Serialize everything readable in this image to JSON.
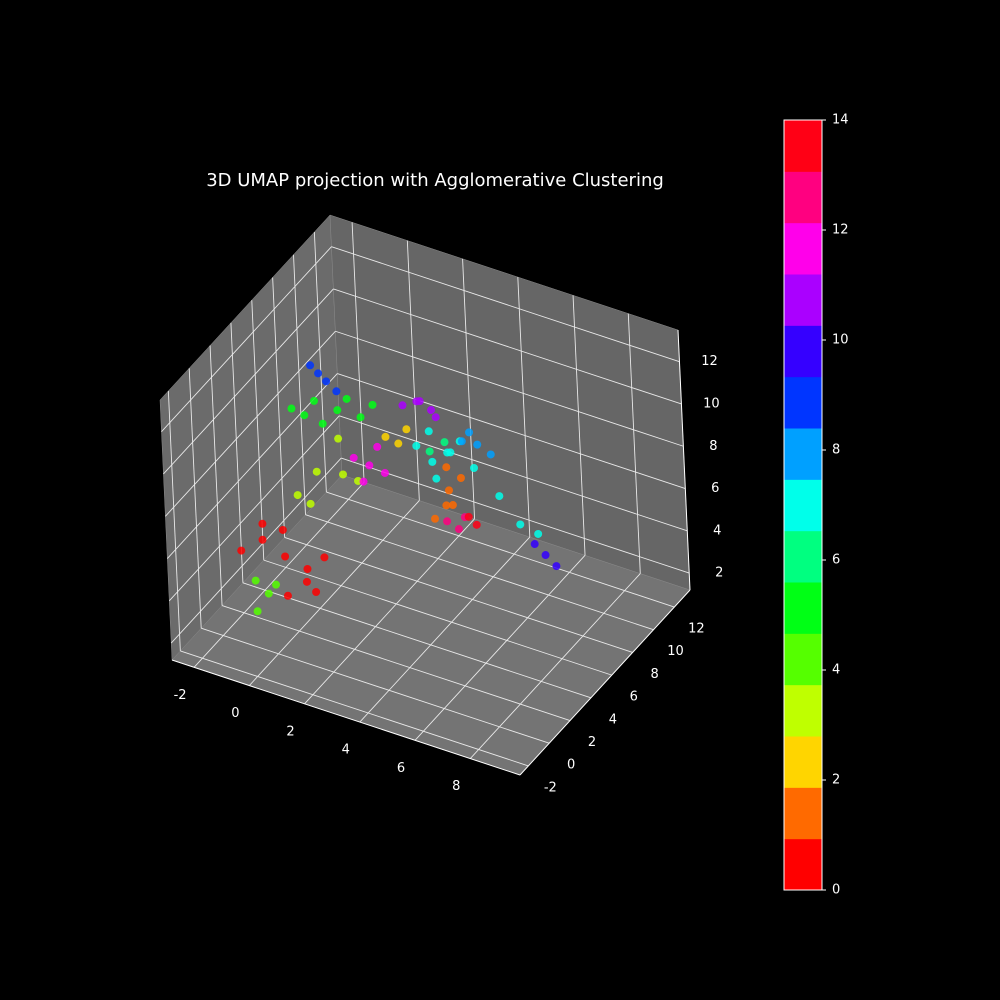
{
  "chart_data": {
    "type": "scatter3d",
    "title": "3D UMAP projection with Agglomerative Clustering",
    "xlim": [
      -2.8,
      9.8
    ],
    "ylim": [
      -2.8,
      13.5
    ],
    "zlim": [
      1.2,
      13.5
    ],
    "xticks": [
      -2,
      0,
      2,
      4,
      6,
      8
    ],
    "yticks": [
      -2,
      0,
      2,
      4,
      6,
      8,
      10,
      12
    ],
    "zticks": [
      2,
      4,
      6,
      8,
      10,
      12
    ],
    "grid": true,
    "colorbar": {
      "lim": [
        0,
        14
      ],
      "ticks": [
        0,
        2,
        4,
        6,
        8,
        10,
        12,
        14
      ]
    },
    "series": [
      {
        "color": "#ff0000",
        "x": [
          -1.8,
          -1.2,
          -0.6,
          0,
          0.6,
          -1.0,
          -0.2,
          0.4,
          -1.5,
          0.2
        ],
        "y": [
          1.5,
          2.0,
          2.5,
          3.0,
          2.2,
          3.4,
          1.6,
          3.6,
          2.8,
          2.4
        ],
        "z": [
          4.5,
          5,
          4.2,
          3.6,
          3.2,
          4.8,
          3.0,
          4.0,
          5.2,
          3.4
        ]
      },
      {
        "color": "#ff6a00",
        "x": [
          2.6,
          3.0,
          3.3,
          2.8,
          3.2,
          2.9
        ],
        "y": [
          8.4,
          8.8,
          9.2,
          9.0,
          8.6,
          8.9
        ],
        "z": [
          4.2,
          5.5,
          6,
          4.6,
          5,
          6.5
        ]
      },
      {
        "color": "#ffd500",
        "x": [
          1.4,
          1.7,
          1.9
        ],
        "y": [
          7.2,
          7.6,
          7.9
        ],
        "z": [
          8.2,
          7.8,
          8.4
        ]
      },
      {
        "color": "#bfff00",
        "x": [
          -0.8,
          -0.3,
          0.3,
          0.8,
          -0.5,
          0.5
        ],
        "y": [
          4.4,
          5.0,
          5.6,
          6.0,
          4.8,
          5.4
        ],
        "z": [
          6,
          7,
          8.5,
          6.5,
          5.5,
          7
        ]
      },
      {
        "color": "#55ff00",
        "x": [
          -1.2,
          -0.9,
          -1.1,
          -0.7
        ],
        "y": [
          1.2,
          1.6,
          1.0,
          1.8
        ],
        "z": [
          3.5,
          2.8,
          2.2,
          3.2
        ]
      },
      {
        "color": "#00ff15",
        "x": [
          -0.8,
          -0.2,
          0.4,
          1.0,
          0.0,
          0.6,
          -0.5,
          1.3
        ],
        "y": [
          4.2,
          4.8,
          5.4,
          6.0,
          5.0,
          5.8,
          4.6,
          6.4
        ],
        "z": [
          10.2,
          10.5,
          10,
          9.6,
          9.4,
          10.4,
          9.8,
          10.1
        ]
      },
      {
        "color": "#00ff80",
        "x": [
          3.0,
          3.4
        ],
        "y": [
          7.2,
          7.6
        ],
        "z": [
          8.2,
          8.6
        ]
      },
      {
        "color": "#00ffea",
        "x": [
          2.6,
          3.0,
          3.4,
          3.8,
          4.2,
          3.2,
          3.6,
          2.8,
          4.6,
          5.0,
          5.4
        ],
        "y": [
          7.0,
          7.4,
          7.8,
          8.0,
          8.2,
          7.2,
          7.6,
          7.7,
          9.4,
          10.2,
          10.8
        ],
        "z": [
          8.4,
          7.6,
          8.0,
          8.6,
          7.4,
          7.0,
          8.2,
          8.8,
          5.6,
          4.0,
          3.4
        ]
      },
      {
        "color": "#00a0ff",
        "x": [
          4.2,
          4.6,
          5.0,
          4.4
        ],
        "y": [
          7.2,
          7.6,
          7.8,
          7.4
        ],
        "z": [
          9.2,
          9,
          8.6,
          9.6
        ]
      },
      {
        "color": "#0035ff",
        "x": [
          0.2,
          0.4,
          0.6,
          0.8
        ],
        "y": [
          3.6,
          3.8,
          4.0,
          4.4
        ],
        "z": [
          13,
          12.6,
          12.2,
          11.6
        ]
      },
      {
        "color": "#3500ff",
        "x": [
          5.9,
          6.2,
          6.5
        ],
        "y": [
          9.2,
          9.4,
          9.6
        ],
        "z": [
          4,
          3.5,
          3
        ]
      },
      {
        "color": "#aa00ff",
        "x": [
          2.2,
          2.6,
          3.0,
          3.2,
          2.8
        ],
        "y": [
          6.9,
          7.2,
          7.5,
          7.4,
          7.0
        ],
        "z": [
          10.2,
          10.4,
          10,
          9.8,
          10.6
        ]
      },
      {
        "color": "#ff00ea",
        "x": [
          0.6,
          1.0,
          1.4,
          0.8,
          1.2
        ],
        "y": [
          6.2,
          6.6,
          7.0,
          6.5,
          6.9
        ],
        "z": [
          7.4,
          7,
          6.6,
          6.2,
          7.8
        ]
      },
      {
        "color": "#ff0080",
        "x": [
          3.0,
          3.3,
          3.5
        ],
        "y": [
          8.5,
          8.8,
          8.9
        ],
        "z": [
          4.2,
          3.8,
          4.4
        ]
      },
      {
        "color": "#ff0015",
        "x": [
          3.6,
          3.8
        ],
        "y": [
          9.0,
          9.2
        ],
        "z": [
          4.4,
          4.0
        ]
      }
    ]
  }
}
